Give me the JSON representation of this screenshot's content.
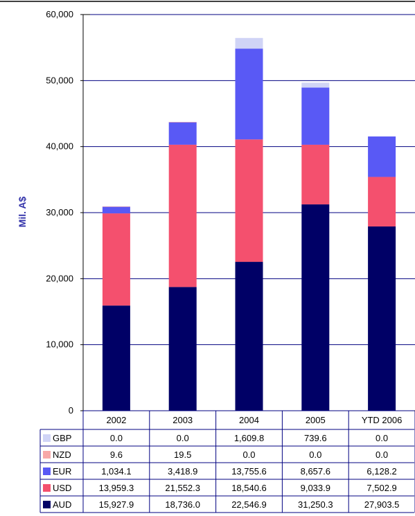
{
  "chart_data": {
    "type": "bar",
    "stacked": true,
    "ylabel": "Mil. A$",
    "ylim": [
      0,
      60000
    ],
    "yticks": [
      "0",
      "10,000",
      "20,000",
      "30,000",
      "40,000",
      "50,000",
      "60,000"
    ],
    "categories": [
      "2002",
      "2003",
      "2004",
      "2005",
      "YTD 2006"
    ],
    "series": [
      {
        "name": "AUD",
        "color": "#000066",
        "values": [
          15927.9,
          18736.0,
          22546.9,
          31250.3,
          27903.5
        ],
        "labels": [
          "15,927.9",
          "18,736.0",
          "22,546.9",
          "31,250.3",
          "27,903.5"
        ]
      },
      {
        "name": "USD",
        "color": "#f4506e",
        "values": [
          13959.3,
          21552.3,
          18540.6,
          9033.9,
          7502.9
        ],
        "labels": [
          "13,959.3",
          "21,552.3",
          "18,540.6",
          "9,033.9",
          "7,502.9"
        ]
      },
      {
        "name": "EUR",
        "color": "#5959f5",
        "values": [
          1034.1,
          3418.9,
          13755.6,
          8657.6,
          6128.2
        ],
        "labels": [
          "1,034.1",
          "3,418.9",
          "13,755.6",
          "8,657.6",
          "6,128.2"
        ]
      },
      {
        "name": "NZD",
        "color": "#f8a8a8",
        "values": [
          9.6,
          19.5,
          0.0,
          0.0,
          0.0
        ],
        "labels": [
          "9.6",
          "19.5",
          "0.0",
          "0.0",
          "0.0"
        ]
      },
      {
        "name": "GBP",
        "color": "#d0d4f6",
        "values": [
          0.0,
          0.0,
          1609.8,
          739.6,
          0.0
        ],
        "labels": [
          "0.0",
          "0.0",
          "1,609.8",
          "739.6",
          "0.0"
        ]
      }
    ],
    "table_row_order": [
      "GBP",
      "NZD",
      "EUR",
      "USD",
      "AUD"
    ],
    "grid": true,
    "legend": "data-table-left"
  }
}
